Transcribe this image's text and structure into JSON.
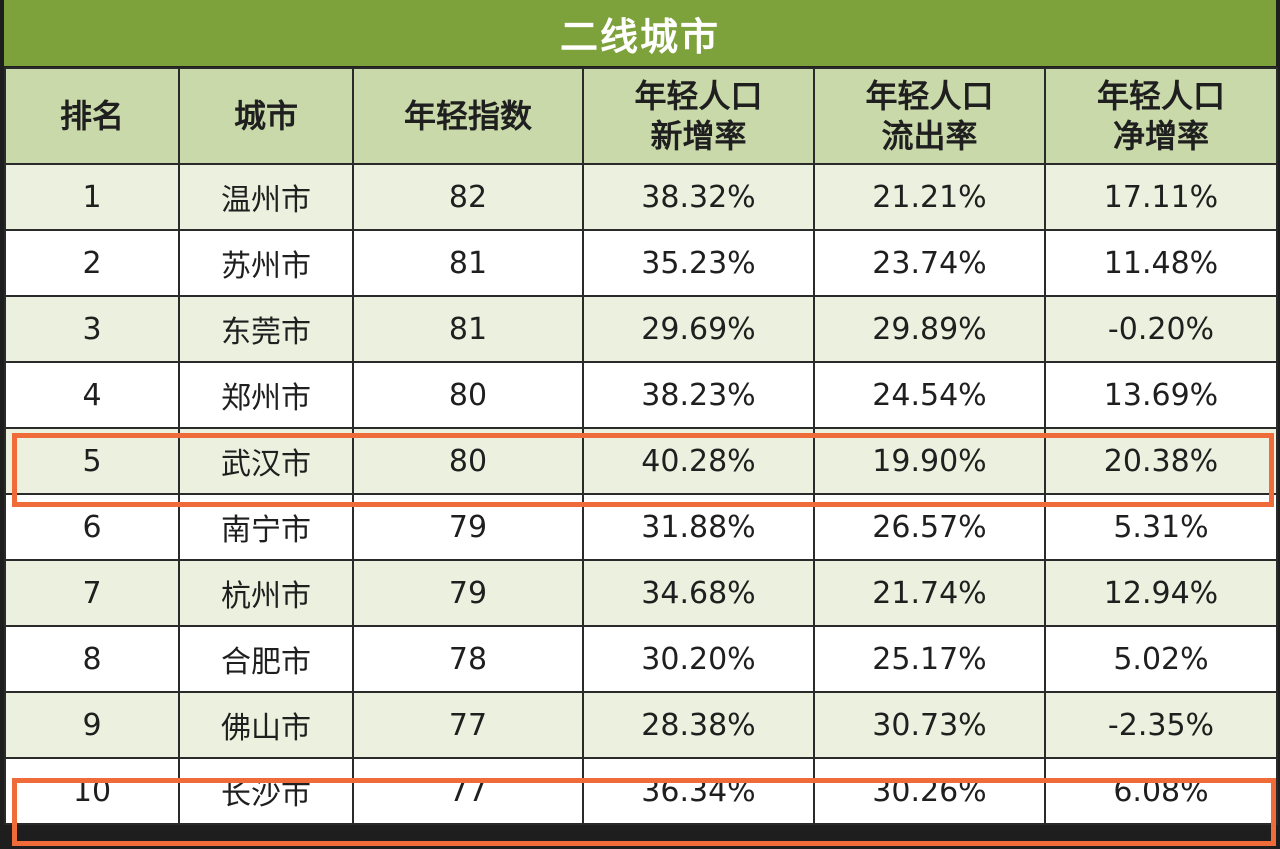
{
  "title": "二线城市",
  "columns": [
    [
      "排名"
    ],
    [
      "城市"
    ],
    [
      "年轻指数"
    ],
    [
      "年轻人口",
      "新增率"
    ],
    [
      "年轻人口",
      "流出率"
    ],
    [
      "年轻人口",
      "净增率"
    ]
  ],
  "rows": [
    [
      "1",
      "温州市",
      "82",
      "38.32%",
      "21.21%",
      "17.11%"
    ],
    [
      "2",
      "苏州市",
      "81",
      "35.23%",
      "23.74%",
      "11.48%"
    ],
    [
      "3",
      "东莞市",
      "81",
      "29.69%",
      "29.89%",
      "-0.20%"
    ],
    [
      "4",
      "郑州市",
      "80",
      "38.23%",
      "24.54%",
      "13.69%"
    ],
    [
      "5",
      "武汉市",
      "80",
      "40.28%",
      "19.90%",
      "20.38%"
    ],
    [
      "6",
      "南宁市",
      "79",
      "31.88%",
      "26.57%",
      "5.31%"
    ],
    [
      "7",
      "杭州市",
      "79",
      "34.68%",
      "21.74%",
      "12.94%"
    ],
    [
      "8",
      "合肥市",
      "78",
      "30.20%",
      "25.17%",
      "5.02%"
    ],
    [
      "9",
      "佛山市",
      "77",
      "28.38%",
      "30.73%",
      "-2.35%"
    ],
    [
      "10",
      "长沙市",
      "77",
      "36.34%",
      "30.26%",
      "6.08%"
    ]
  ],
  "highlighted_ranks": [
    "5",
    "10"
  ],
  "colors": {
    "title_bg": "#7da13b",
    "header_bg": "#c9d9a9",
    "row_alt_bg": "#ebf1de",
    "highlight_border": "#ef6b3a"
  }
}
